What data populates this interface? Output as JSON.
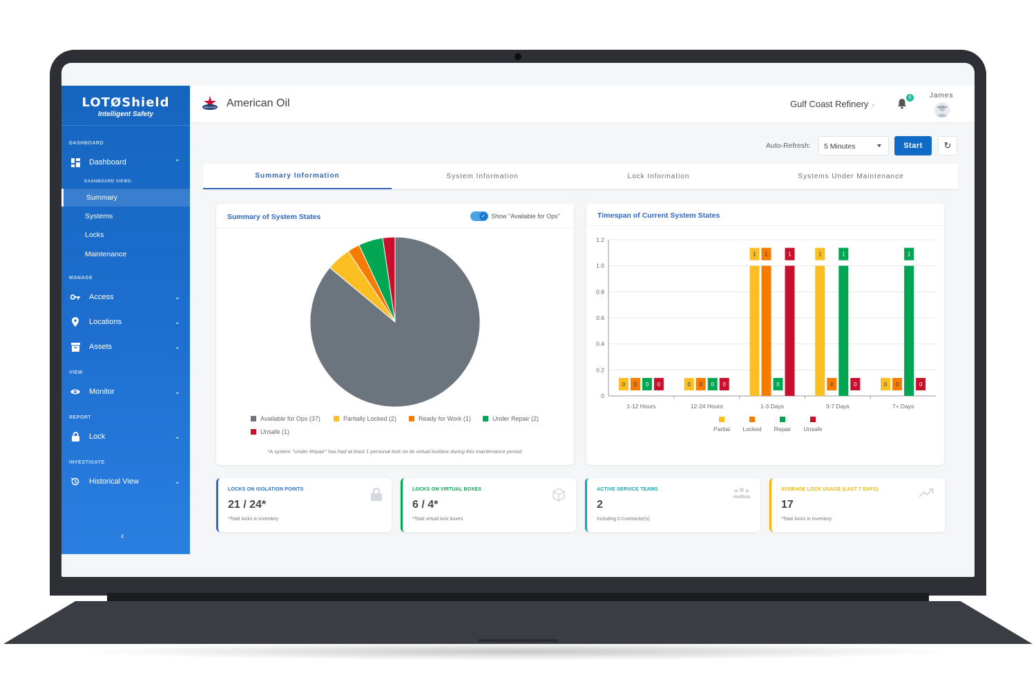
{
  "sidebar": {
    "logo": "LOTØShield",
    "tagline": "Intelligent Safety",
    "sections": {
      "dashboard": "DASHBOARD",
      "dashboard_views": "DASHBOARD VIEWS:",
      "manage": "MANAGE",
      "view": "VIEW",
      "report": "REPORT",
      "investigate": "INVESTIGATE"
    },
    "dashboard_label": "Dashboard",
    "sub_items": [
      "Summary",
      "Systems",
      "Locks",
      "Maintenance"
    ],
    "manage_items": [
      "Access",
      "Locations",
      "Assets"
    ],
    "view_items": [
      "Monitor"
    ],
    "report_items": [
      "Lock"
    ],
    "investigate_items": [
      "Historical View"
    ],
    "collapse_glyph": "‹"
  },
  "header": {
    "org_name": "American Oil",
    "site": "Gulf Coast Refinery",
    "notifications": "0",
    "user": "James"
  },
  "controls": {
    "auto_refresh_label": "Auto-Refresh:",
    "auto_refresh_value": "5 Minutes",
    "start_label": "Start",
    "refresh_glyph": "↻"
  },
  "tabs": [
    "Summary Information",
    "System Information",
    "Lock Information",
    "Systems Under Maintenance"
  ],
  "pie_card": {
    "title": "Summary of System States",
    "toggle_label": "Show \"Available for Ops\"",
    "footnote": "*A system \"Under Repair\" has had at least 1 personal lock on its virtual lockbox during this maintenance period."
  },
  "bar_card": {
    "title": "Timespan of Current System States"
  },
  "colors": {
    "available": "#6c757d",
    "partial": "#fbbf24",
    "locked": "#f57c00",
    "repair": "#00a651",
    "unsafe": "#c8102e"
  },
  "chart_data": [
    {
      "type": "pie",
      "labels": [
        "Available for Ops (37)",
        "Partially Locked (2)",
        "Ready for Work (1)",
        "Under Repair (2)",
        "Unsafe (1)"
      ],
      "values": [
        37,
        2,
        1,
        2,
        1
      ],
      "legend_position": "bottom"
    },
    {
      "type": "bar",
      "categories": [
        "1-12 Hours",
        "12-24 Hours",
        "1-3 Days",
        "3-7 Days",
        "7+ Days"
      ],
      "series": [
        {
          "name": "Partial",
          "values": [
            0,
            0,
            1,
            1,
            0
          ]
        },
        {
          "name": "Locked",
          "values": [
            0,
            0,
            1,
            0,
            0
          ]
        },
        {
          "name": "Repair",
          "values": [
            0,
            0,
            0,
            1,
            1
          ]
        },
        {
          "name": "Unsafe",
          "values": [
            0,
            0,
            1,
            0,
            0
          ]
        }
      ],
      "ylim": [
        0,
        1.2
      ],
      "yticks": [
        "0",
        "0.2",
        "0.4",
        "0.6",
        "0.8",
        "1.0",
        "1.2"
      ],
      "grid": true,
      "legend_position": "bottom"
    }
  ],
  "stats": [
    {
      "title": "LOCKS ON ISOLATION POINTS",
      "value": "21 / 24*",
      "note": "*Total locks in inventory",
      "color": "#1e6fd0",
      "icon": "padlock-icon"
    },
    {
      "title": "LOCKS ON VIRTUAL BOXES",
      "value": "6 / 4*",
      "note": "*Total virtual lock boxes",
      "color": "#00a651",
      "icon": "cube-icon"
    },
    {
      "title": "ACTIVE SERVICE TEAMS",
      "value": "2",
      "note": "Including 0 Contractor(s)",
      "color": "#14a3b8",
      "icon": "team-icon"
    },
    {
      "title": "AVERAGE LOCK USAGE (LAST 7 DAYS)",
      "value": "17",
      "note": "*Total locks in inventory",
      "color": "#f4b400",
      "icon": "trend-icon"
    }
  ]
}
